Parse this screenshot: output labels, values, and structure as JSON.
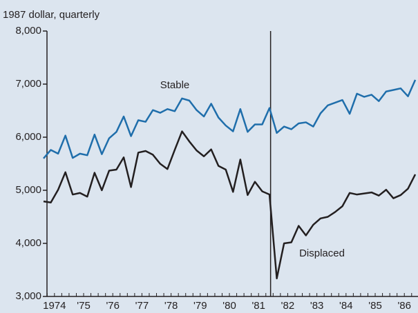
{
  "chart_data": {
    "type": "line",
    "y_axis_label": "1987 dollar, quarterly",
    "categories": [
      "1974",
      null,
      null,
      null,
      "'75",
      null,
      null,
      null,
      "'76",
      null,
      null,
      null,
      "'77",
      null,
      null,
      null,
      "'78",
      null,
      null,
      null,
      "'79",
      null,
      null,
      null,
      "'80",
      null,
      null,
      null,
      "'81",
      null,
      null,
      null,
      "'82",
      null,
      null,
      null,
      "'83",
      null,
      null,
      null,
      "'84",
      null,
      null,
      null,
      "'85",
      null,
      null,
      null,
      "'86",
      null,
      null,
      null
    ],
    "series": [
      {
        "name": "Stable",
        "color": "#1f6eab",
        "values": [
          5600,
          5760,
          5690,
          6030,
          5610,
          5690,
          5660,
          6050,
          5680,
          5980,
          6100,
          6390,
          6020,
          6320,
          6290,
          6510,
          6460,
          6530,
          6490,
          6730,
          6690,
          6510,
          6390,
          6630,
          6370,
          6220,
          6110,
          6530,
          6100,
          6240,
          6240,
          6550,
          6080,
          6200,
          6150,
          6260,
          6280,
          6200,
          6450,
          6600,
          6650,
          6700,
          6440,
          6820,
          6760,
          6800,
          6680,
          6860,
          6890,
          6920,
          6770,
          7080
        ]
      },
      {
        "name": "Displaced",
        "color": "#231f20",
        "values": [
          4790,
          4770,
          5010,
          5340,
          4920,
          4950,
          4880,
          5330,
          5000,
          5370,
          5390,
          5620,
          5060,
          5710,
          5740,
          5670,
          5500,
          5400,
          5760,
          6110,
          5920,
          5750,
          5640,
          5770,
          5460,
          5390,
          4970,
          5580,
          4910,
          5160,
          4980,
          4920,
          3340,
          4000,
          4020,
          4330,
          4150,
          4350,
          4470,
          4500,
          4590,
          4700,
          4950,
          4920,
          4940,
          4960,
          4900,
          5010,
          4850,
          4910,
          5030,
          5300
        ]
      }
    ],
    "ylim": [
      3000,
      8000
    ],
    "yticks": [
      {
        "value": 3000,
        "label": "3,000"
      },
      {
        "value": 4000,
        "label": "4,000"
      },
      {
        "value": 5000,
        "label": "5,000"
      },
      {
        "value": 6000,
        "label": "6,000"
      },
      {
        "value": 7000,
        "label": "7,000"
      },
      {
        "value": 8000,
        "label": "8,000"
      }
    ]
  }
}
